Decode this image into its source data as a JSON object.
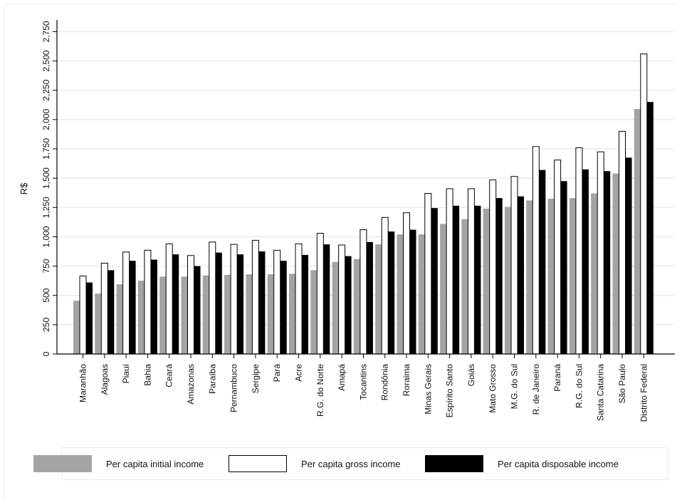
{
  "chart_data": {
    "type": "bar",
    "ylabel": "R$",
    "ylim": [
      0,
      2850
    ],
    "yticks": [
      0,
      250,
      500,
      750,
      1000,
      1250,
      1500,
      1750,
      2000,
      2250,
      2500,
      2750
    ],
    "ytick_labels": [
      "0",
      "250",
      "500",
      "750",
      "1,000",
      "1,250",
      "1,500",
      "1,750",
      "2,000",
      "2,250",
      "2,500",
      "2,750"
    ],
    "grid": true,
    "legend_position": "bottom",
    "categories": [
      "Maranhão",
      "Alagoas",
      "Piauí",
      "Bahia",
      "Ceará",
      "Amazonas",
      "Paraíba",
      "Pernambuco",
      "Sergipe",
      "Pará",
      "Acre",
      "R.G. do Norte",
      "Amapá",
      "Tocantins",
      "Rondônia",
      "Roraima",
      "Minas Gerais",
      "Espírito Santo",
      "Goiás",
      "Mato Grosso",
      "M.G. do Sul",
      "R. de Janeiro",
      "Paraná",
      "R.G. do Sul",
      "Santa Catarina",
      "São Paulo",
      "Distrito Federal"
    ],
    "series": [
      {
        "name": "Per capita initial income",
        "color": "#a3a3a3",
        "values": [
          455,
          515,
          595,
          625,
          660,
          660,
          670,
          675,
          680,
          680,
          685,
          715,
          785,
          810,
          935,
          1020,
          1020,
          1110,
          1150,
          1240,
          1255,
          1310,
          1325,
          1330,
          1370,
          1540,
          2090
        ]
      },
      {
        "name": "Per capita gross income",
        "color": "#ffffff",
        "values": [
          665,
          775,
          870,
          885,
          940,
          840,
          955,
          935,
          970,
          885,
          940,
          1030,
          930,
          1060,
          1165,
          1205,
          1370,
          1410,
          1410,
          1485,
          1515,
          1770,
          1655,
          1760,
          1725,
          1900,
          2560
        ]
      },
      {
        "name": "Per capita disposable income",
        "color": "#000000",
        "values": [
          610,
          715,
          795,
          805,
          850,
          750,
          865,
          850,
          875,
          795,
          845,
          935,
          835,
          955,
          1045,
          1060,
          1245,
          1265,
          1265,
          1330,
          1345,
          1570,
          1475,
          1575,
          1560,
          1675,
          2150
        ]
      }
    ]
  }
}
